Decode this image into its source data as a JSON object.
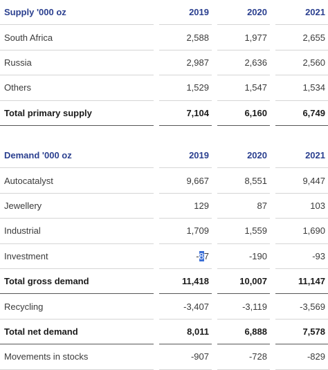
{
  "supply": {
    "header": {
      "label": "Supply '000 oz",
      "years": [
        "2019",
        "2020",
        "2021"
      ]
    },
    "rows": [
      {
        "label": "South Africa",
        "values": [
          "2,588",
          "1,977",
          "2,655"
        ],
        "total": false
      },
      {
        "label": "Russia",
        "values": [
          "2,987",
          "2,636",
          "2,560"
        ],
        "total": false
      },
      {
        "label": "Others",
        "values": [
          "1,529",
          "1,547",
          "1,534"
        ],
        "total": false
      },
      {
        "label": "Total primary supply",
        "values": [
          "7,104",
          "6,160",
          "6,749"
        ],
        "total": true
      }
    ]
  },
  "demand": {
    "header": {
      "label": "Demand '000 oz",
      "years": [
        "2019",
        "2020",
        "2021"
      ]
    },
    "rows": [
      {
        "label": "Autocatalyst",
        "values": [
          "9,667",
          "8,551",
          "9,447"
        ],
        "total": false
      },
      {
        "label": "Jewellery",
        "values": [
          "129",
          "87",
          "103"
        ],
        "total": false
      },
      {
        "label": "Industrial",
        "values": [
          "1,709",
          "1,559",
          "1,690"
        ],
        "total": false
      },
      {
        "label": "Investment",
        "values": [
          "-87",
          "-190",
          "-93"
        ],
        "total": false
      },
      {
        "label": "Total gross demand",
        "values": [
          "11,418",
          "10,007",
          "11,147"
        ],
        "total": true
      },
      {
        "label": "Recycling",
        "values": [
          "-3,407",
          "-3,119",
          "-3,569"
        ],
        "total": false
      },
      {
        "label": "Total net demand",
        "values": [
          "8,011",
          "6,888",
          "7,578"
        ],
        "total": true
      },
      {
        "label": "Movements in stocks",
        "values": [
          "-907",
          "-728",
          "-829"
        ],
        "total": false
      }
    ]
  }
}
